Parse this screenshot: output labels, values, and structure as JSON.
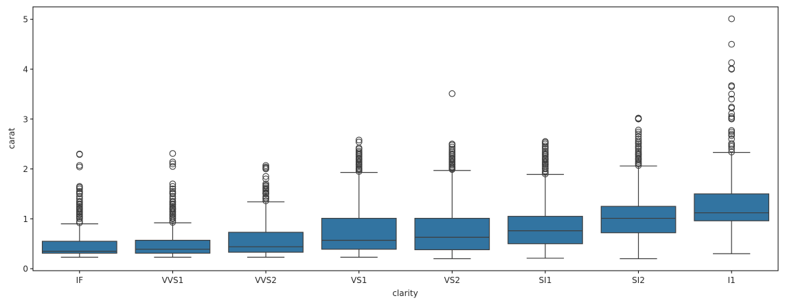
{
  "chart_data": {
    "type": "box",
    "title": "",
    "xlabel": "clarity",
    "ylabel": "carat",
    "ylim": [
      -0.04,
      5.25
    ],
    "yticks": [
      0,
      1,
      2,
      3,
      4,
      5
    ],
    "ytick_labels": [
      "0",
      "1",
      "2",
      "3",
      "4",
      "5"
    ],
    "grid": false,
    "legend": "none",
    "colors": {
      "box_fill": "#3274a1",
      "line": "#3d3d3d",
      "axis": "#000000"
    },
    "categories": [
      "IF",
      "VVS1",
      "VVS2",
      "VS1",
      "VS2",
      "SI1",
      "SI2",
      "I1"
    ],
    "boxes": [
      {
        "category": "IF",
        "whisker_low": 0.23,
        "q1": 0.31,
        "median": 0.35,
        "q3": 0.55,
        "whisker_high": 0.9,
        "outliers": [
          0.92,
          0.95,
          1.0,
          1.03,
          1.05,
          1.08,
          1.1,
          1.13,
          1.15,
          1.18,
          1.2,
          1.22,
          1.25,
          1.28,
          1.3,
          1.33,
          1.35,
          1.4,
          1.45,
          1.5,
          1.52,
          1.55,
          1.6,
          1.63,
          1.65,
          2.04,
          2.07,
          2.29,
          2.3
        ]
      },
      {
        "category": "VVS1",
        "whisker_low": 0.23,
        "q1": 0.31,
        "median": 0.39,
        "q3": 0.57,
        "whisker_high": 0.92,
        "outliers": [
          0.93,
          0.96,
          1.0,
          1.02,
          1.05,
          1.08,
          1.1,
          1.13,
          1.15,
          1.18,
          1.2,
          1.22,
          1.25,
          1.28,
          1.3,
          1.33,
          1.35,
          1.4,
          1.45,
          1.5,
          1.52,
          1.55,
          1.6,
          1.65,
          1.7,
          2.05,
          2.1,
          2.14,
          2.31
        ]
      },
      {
        "category": "VVS2",
        "whisker_low": 0.23,
        "q1": 0.33,
        "median": 0.44,
        "q3": 0.73,
        "whisker_high": 1.34,
        "outliers": [
          1.36,
          1.4,
          1.42,
          1.45,
          1.5,
          1.51,
          1.52,
          1.55,
          1.58,
          1.6,
          1.62,
          1.65,
          1.67,
          1.7,
          1.8,
          1.85,
          2.0,
          2.02,
          2.04,
          2.07
        ]
      },
      {
        "category": "VS1",
        "whisker_low": 0.23,
        "q1": 0.39,
        "median": 0.57,
        "q3": 1.01,
        "whisker_high": 1.93,
        "outliers": [
          1.95,
          1.98,
          2.0,
          2.02,
          2.05,
          2.08,
          2.1,
          2.13,
          2.15,
          2.18,
          2.2,
          2.22,
          2.25,
          2.28,
          2.3,
          2.33,
          2.36,
          2.4,
          2.42,
          2.54,
          2.58
        ]
      },
      {
        "category": "VS2",
        "whisker_low": 0.2,
        "q1": 0.38,
        "median": 0.63,
        "q3": 1.01,
        "whisker_high": 1.97,
        "outliers": [
          1.99,
          2.01,
          2.03,
          2.05,
          2.08,
          2.1,
          2.13,
          2.15,
          2.18,
          2.2,
          2.22,
          2.25,
          2.28,
          2.3,
          2.33,
          2.36,
          2.4,
          2.44,
          2.48,
          2.5,
          3.51
        ]
      },
      {
        "category": "SI1",
        "whisker_low": 0.21,
        "q1": 0.5,
        "median": 0.76,
        "q3": 1.05,
        "whisker_high": 1.89,
        "outliers": [
          1.9,
          1.93,
          1.96,
          2.0,
          2.02,
          2.05,
          2.08,
          2.1,
          2.13,
          2.15,
          2.18,
          2.2,
          2.22,
          2.25,
          2.28,
          2.3,
          2.33,
          2.36,
          2.4,
          2.43,
          2.46,
          2.5,
          2.53,
          2.55
        ]
      },
      {
        "category": "SI2",
        "whisker_low": 0.2,
        "q1": 0.72,
        "median": 1.01,
        "q3": 1.25,
        "whisker_high": 2.06,
        "outliers": [
          2.07,
          2.1,
          2.12,
          2.15,
          2.18,
          2.2,
          2.22,
          2.25,
          2.28,
          2.3,
          2.33,
          2.36,
          2.4,
          2.43,
          2.46,
          2.5,
          2.53,
          2.56,
          2.6,
          2.65,
          2.7,
          2.74,
          2.78,
          3.0,
          3.01,
          3.02
        ]
      },
      {
        "category": "I1",
        "whisker_low": 0.3,
        "q1": 0.96,
        "median": 1.12,
        "q3": 1.5,
        "whisker_high": 2.33,
        "outliers": [
          2.34,
          2.4,
          2.45,
          2.48,
          2.51,
          2.6,
          2.67,
          2.7,
          2.74,
          2.77,
          3.0,
          3.02,
          3.05,
          3.11,
          3.22,
          3.24,
          3.4,
          3.5,
          3.65,
          3.67,
          4.0,
          4.01,
          4.13,
          4.5,
          5.01
        ]
      }
    ]
  }
}
